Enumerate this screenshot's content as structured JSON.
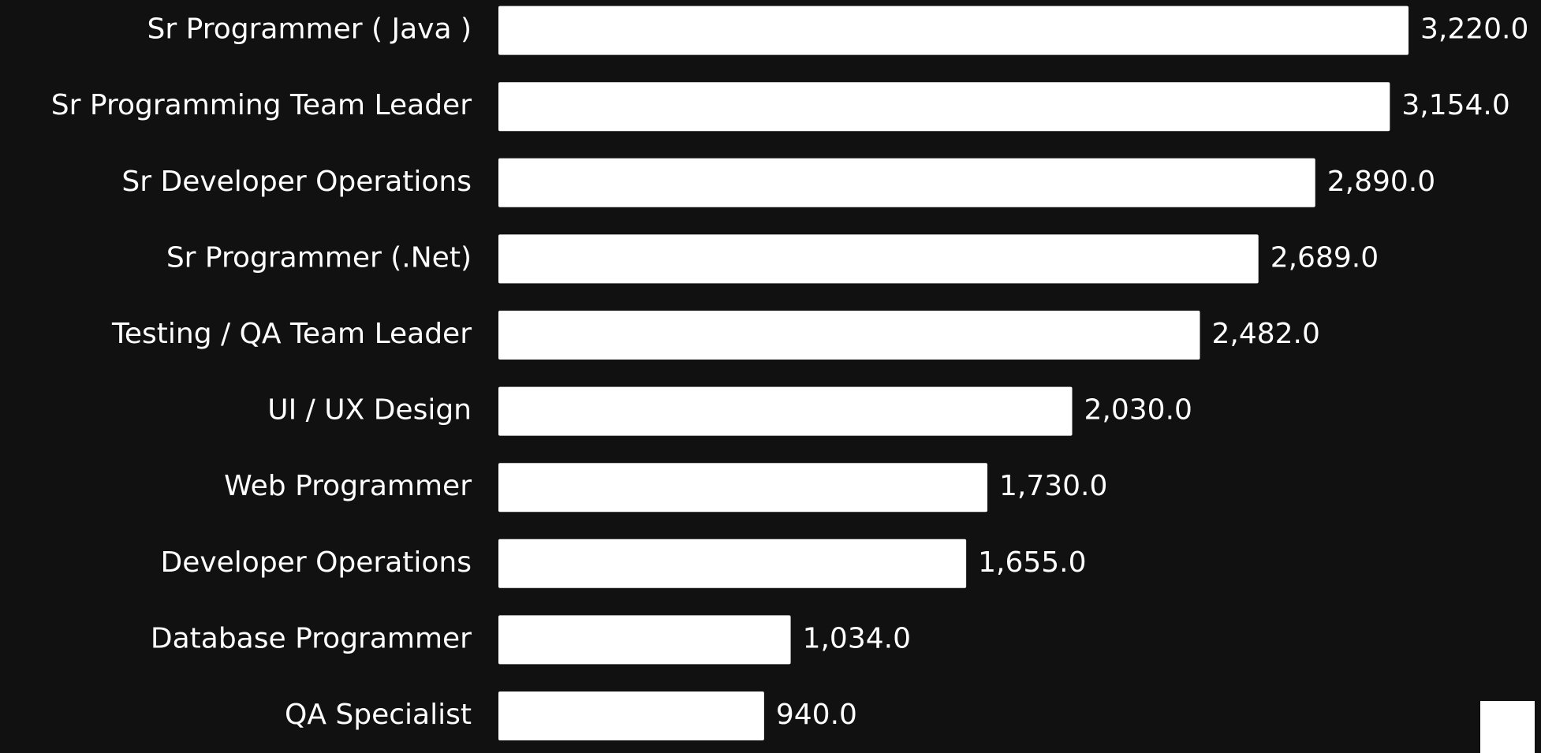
{
  "chart_data": {
    "type": "bar",
    "orientation": "horizontal",
    "color": "#ffffff",
    "categories": [
      "Sr Programmer ( Java )",
      "Sr Programming Team Leader",
      "Sr Developer Operations",
      "Sr Programmer (.Net)",
      "Testing / QA Team Leader",
      "UI / UX Design",
      "Web Programmer",
      "Developer Operations",
      "Database Programmer",
      "QA Specialist"
    ],
    "values": [
      3220,
      3154,
      2890,
      2689,
      2482,
      2030,
      1730,
      1655,
      1034,
      940
    ],
    "value_labels": [
      "3,220.0",
      "3,154.0",
      "2,890.0",
      "2,689.0",
      "2,482.0",
      "2,030.0",
      "1,730.0",
      "1,655.0",
      "1,034.0",
      "940.0"
    ]
  }
}
